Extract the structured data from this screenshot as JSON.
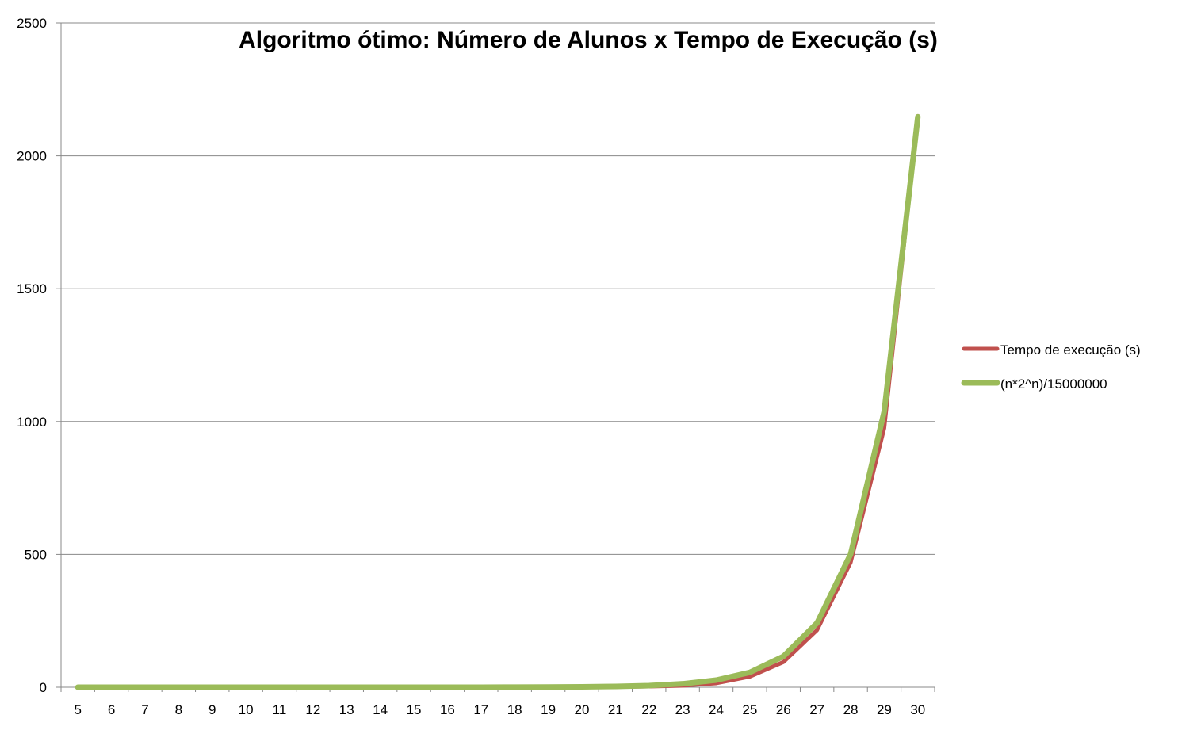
{
  "chart_data": {
    "type": "line",
    "title": "Algoritmo ótimo: Número de Alunos x Tempo de Execução (s)",
    "xlabel": "",
    "ylabel": "",
    "categories": [
      "5",
      "6",
      "7",
      "8",
      "9",
      "10",
      "11",
      "12",
      "13",
      "14",
      "15",
      "16",
      "17",
      "18",
      "19",
      "20",
      "21",
      "22",
      "23",
      "24",
      "25",
      "26",
      "27",
      "28",
      "29",
      "30"
    ],
    "ylim": [
      0,
      2500
    ],
    "yticks": [
      0,
      500,
      1000,
      1500,
      2000,
      2500
    ],
    "grid": "horizontal",
    "legend_position": "right",
    "series": [
      {
        "name": "Tempo de execução (s)",
        "color": "#c0504d",
        "values": [
          0,
          0,
          0,
          0,
          0,
          0,
          0,
          0,
          0,
          0,
          0,
          0,
          0,
          0,
          0,
          0.5,
          1,
          3,
          6,
          15,
          40,
          95,
          215,
          470,
          975,
          2150
        ]
      },
      {
        "name": "(n*2^n)/15000000",
        "color": "#9bbb59",
        "values": [
          1e-05,
          3e-05,
          6e-05,
          0.00014,
          0.00031,
          0.00068,
          0.0015,
          0.0033,
          0.0071,
          0.0153,
          0.0328,
          0.0699,
          0.149,
          0.315,
          0.664,
          1.4,
          2.94,
          6.15,
          12.9,
          26.8,
          55.9,
          116.3,
          241.6,
          501.1,
          1038,
          2147
        ]
      }
    ]
  }
}
